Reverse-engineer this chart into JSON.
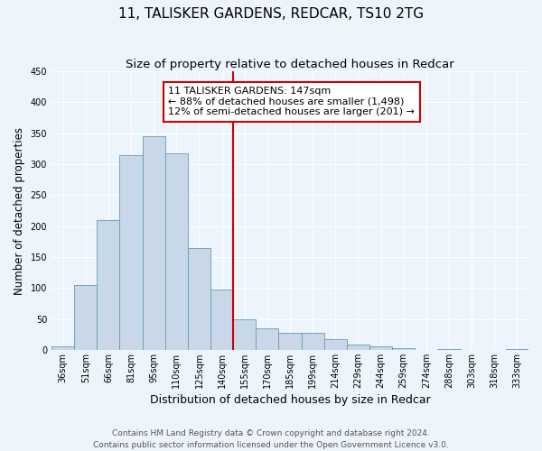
{
  "title": "11, TALISKER GARDENS, REDCAR, TS10 2TG",
  "subtitle": "Size of property relative to detached houses in Redcar",
  "xlabel": "Distribution of detached houses by size in Redcar",
  "ylabel": "Number of detached properties",
  "categories": [
    "36sqm",
    "51sqm",
    "66sqm",
    "81sqm",
    "95sqm",
    "110sqm",
    "125sqm",
    "140sqm",
    "155sqm",
    "170sqm",
    "185sqm",
    "199sqm",
    "214sqm",
    "229sqm",
    "244sqm",
    "259sqm",
    "274sqm",
    "288sqm",
    "303sqm",
    "318sqm",
    "333sqm"
  ],
  "bar_heights": [
    6,
    105,
    210,
    315,
    345,
    318,
    165,
    97,
    50,
    35,
    28,
    28,
    17,
    9,
    5,
    3,
    0,
    1,
    0,
    0,
    1
  ],
  "bar_color": "#c8d8e8",
  "bar_edge_color": "#6699bb",
  "ylim": [
    0,
    450
  ],
  "yticks": [
    0,
    50,
    100,
    150,
    200,
    250,
    300,
    350,
    400,
    450
  ],
  "vline_x_index": 7.5,
  "vline_color": "#cc0000",
  "annotation_title": "11 TALISKER GARDENS: 147sqm",
  "annotation_line1": "← 88% of detached houses are smaller (1,498)",
  "annotation_line2": "12% of semi-detached houses are larger (201) →",
  "annotation_box_color": "#cc0000",
  "footnote1": "Contains HM Land Registry data © Crown copyright and database right 2024.",
  "footnote2": "Contains public sector information licensed under the Open Government Licence v3.0.",
  "bg_color": "#eef4fb",
  "plot_bg_color": "#eef4fb",
  "grid_color": "#ffffff",
  "title_fontsize": 11,
  "subtitle_fontsize": 9.5,
  "xlabel_fontsize": 9,
  "ylabel_fontsize": 8.5,
  "tick_fontsize": 7,
  "annotation_fontsize": 8,
  "footnote_fontsize": 6.5
}
